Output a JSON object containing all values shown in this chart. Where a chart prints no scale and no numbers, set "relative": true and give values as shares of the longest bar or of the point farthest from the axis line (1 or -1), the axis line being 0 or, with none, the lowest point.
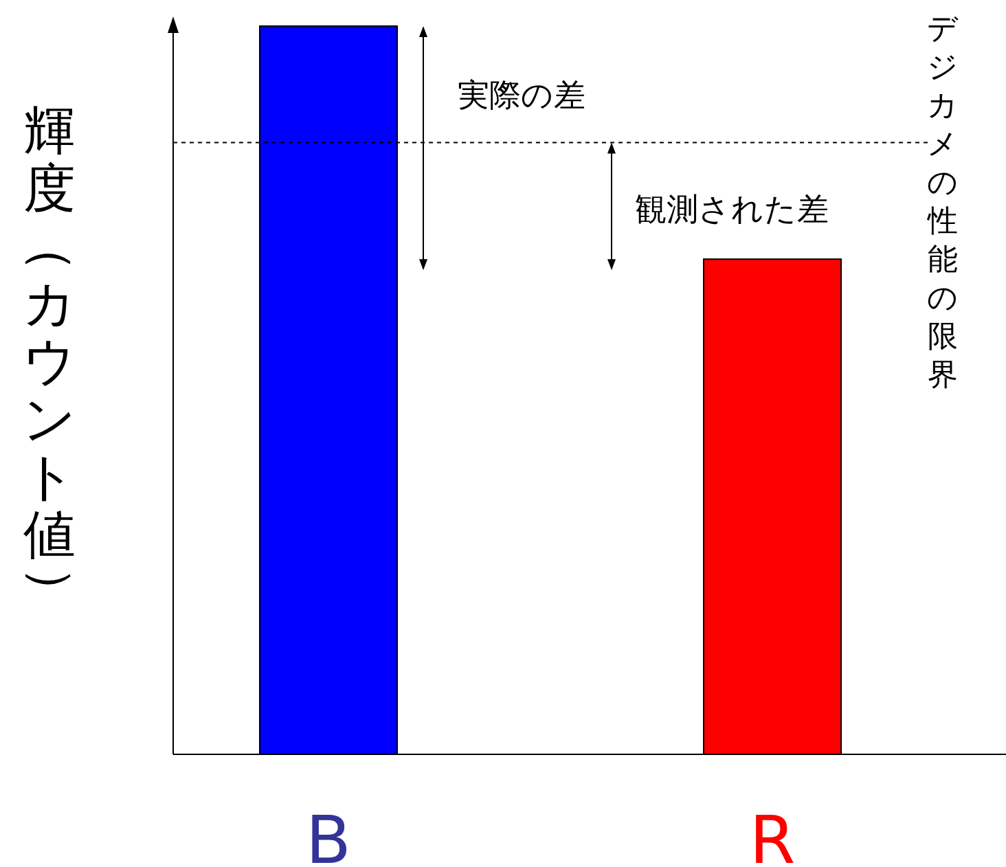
{
  "chart_data": {
    "type": "bar",
    "relative": true,
    "ylabel": "輝度（カウント値）",
    "categories": [
      "B",
      "R"
    ],
    "values": [
      1,
      0.68
    ],
    "colors": [
      "#0000ff",
      "#ff0000"
    ],
    "ref_lines": [
      {
        "axis": "y",
        "value": 0.84,
        "label": "デジカメの性能の限界",
        "color": "#000000",
        "line_style": "dashed"
      }
    ],
    "annotations": [
      "実際の差",
      "観測された差"
    ]
  }
}
